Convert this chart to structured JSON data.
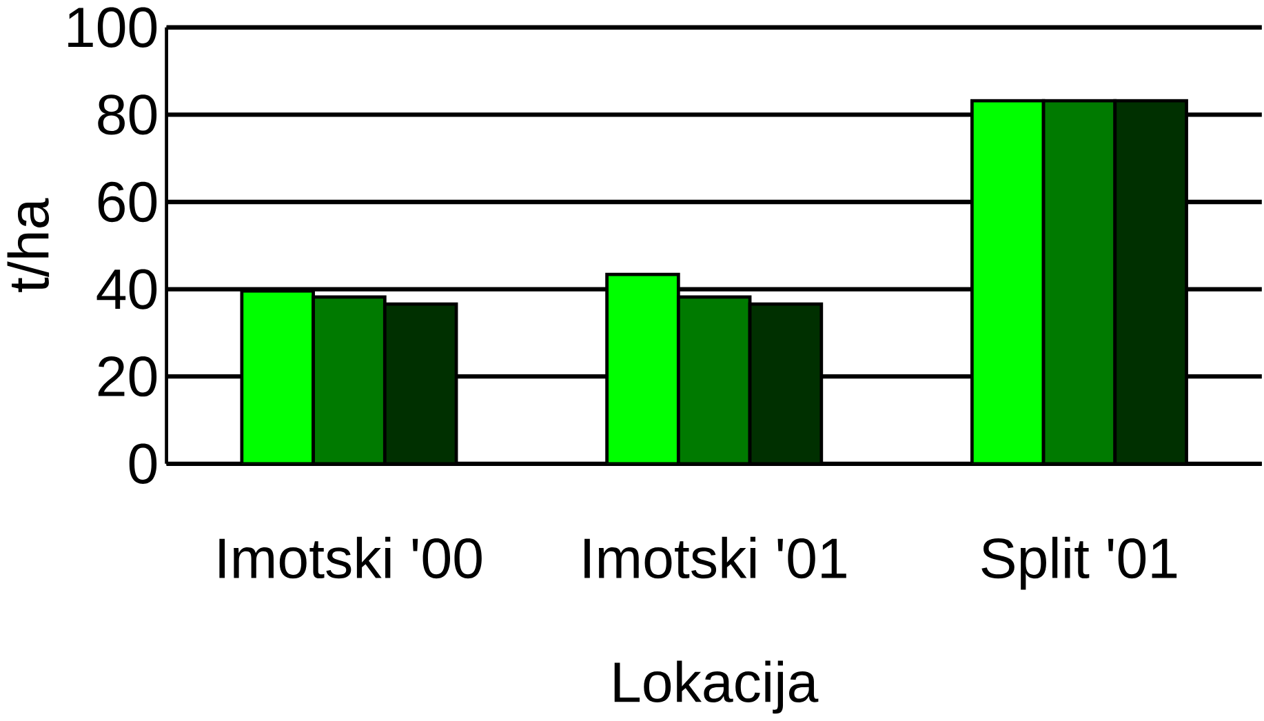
{
  "chart_data": {
    "type": "bar",
    "xlabel": "Lokacija",
    "ylabel": "t/ha",
    "categories": [
      "Imotski '00",
      "Imotski '01",
      "Split '01"
    ],
    "series": [
      {
        "color": "#00ff00",
        "values": [
          39.6,
          43.4,
          83.2
        ]
      },
      {
        "color": "#007a00",
        "values": [
          38.2,
          38.2,
          83.2
        ]
      },
      {
        "color": "#003000",
        "values": [
          36.6,
          36.6,
          83.2
        ]
      }
    ],
    "ylim": [
      0,
      100
    ],
    "yticks": [
      0,
      20,
      40,
      60,
      80,
      100
    ],
    "grid": "y"
  }
}
